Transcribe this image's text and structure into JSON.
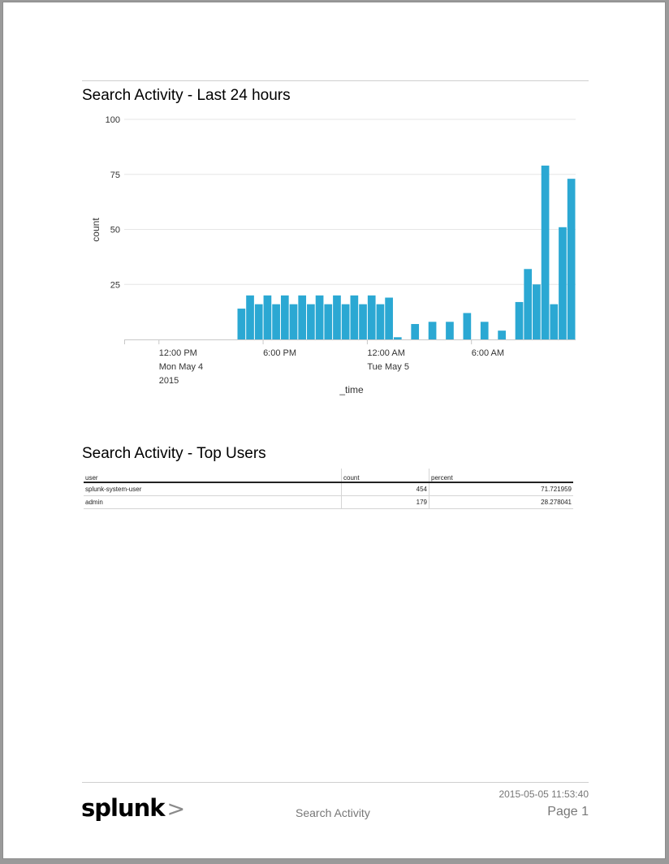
{
  "panels": {
    "activity_title": "Search Activity - Last 24 hours",
    "users_title": "Search Activity - Top Users"
  },
  "chart_data": {
    "type": "bar",
    "xlabel": "_time",
    "ylabel": "count",
    "ylim": [
      0,
      100
    ],
    "yticks": [
      25,
      50,
      75,
      100
    ],
    "grid": true,
    "legend": "none",
    "color": "#2ba8d3",
    "x_start": "2015-05-04 10:00",
    "interval_minutes": 30,
    "x_tick_labels": [
      {
        "lines": [
          "12:00 PM",
          "Mon May 4",
          "2015"
        ],
        "at_bin": 4
      },
      {
        "lines": [
          "6:00 PM"
        ],
        "at_bin": 16
      },
      {
        "lines": [
          "12:00 AM",
          "Tue May 5"
        ],
        "at_bin": 28
      },
      {
        "lines": [
          "6:00 AM"
        ],
        "at_bin": 40
      }
    ],
    "values": [
      0,
      0,
      0,
      0,
      0,
      0,
      0,
      0,
      0,
      0,
      0,
      0,
      0,
      14,
      20,
      16,
      20,
      16,
      20,
      16,
      20,
      16,
      20,
      16,
      20,
      16,
      20,
      16,
      20,
      16,
      19,
      1,
      0,
      7,
      0,
      8,
      0,
      8,
      0,
      12,
      0,
      8,
      0,
      4,
      0,
      17,
      32,
      25,
      79,
      16,
      51,
      73
    ]
  },
  "table": {
    "columns": [
      "user",
      "count",
      "percent"
    ],
    "rows": [
      [
        "splunk-system-user",
        "454",
        "71.721959"
      ],
      [
        "admin",
        "179",
        "28.278041"
      ]
    ]
  },
  "footer": {
    "timestamp": "2015-05-05 11:53:40",
    "report_name": "Search Activity",
    "page_label": "Page 1",
    "logo_text": "splunk",
    "logo_chevron": ">"
  }
}
